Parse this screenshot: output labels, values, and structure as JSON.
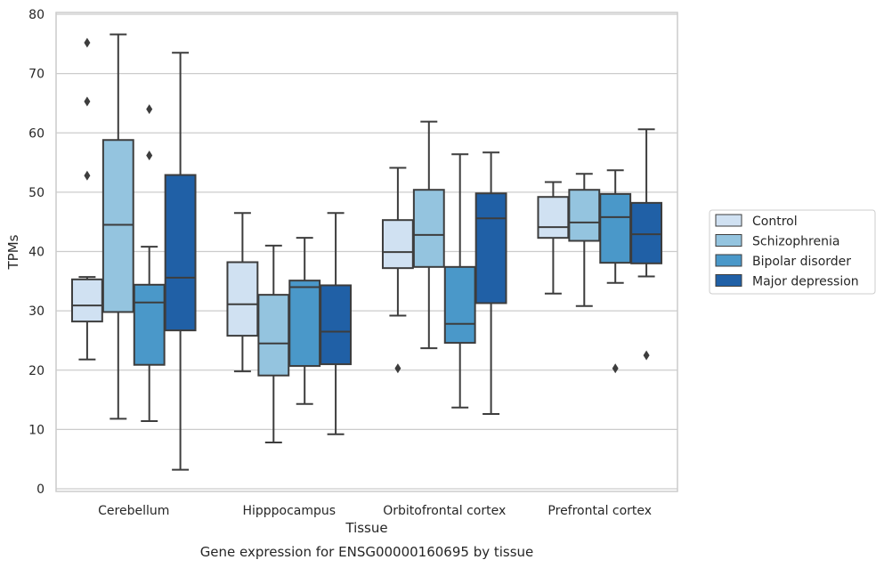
{
  "chart_data": {
    "type": "boxplot",
    "title": "Gene expression for ENSG00000160695 by tissue",
    "xlabel": "Tissue",
    "ylabel": "TPMs",
    "ylim": [
      0,
      80
    ],
    "yticks": [
      0,
      10,
      20,
      30,
      40,
      50,
      60,
      70,
      80
    ],
    "grid": true,
    "legend_position": "right",
    "categories": [
      "Cerebellum",
      "Hipppocampus",
      "Orbitofrontal cortex",
      "Prefrontal cortex"
    ],
    "series": [
      {
        "name": "Control",
        "color": "#d0e1f2",
        "boxes": [
          {
            "min": 21.8,
            "q1": 28.2,
            "median": 30.9,
            "q3": 35.3,
            "max": 35.7,
            "outliers": [
              52.8,
              65.3,
              75.2
            ]
          },
          {
            "min": 19.8,
            "q1": 25.8,
            "median": 31.1,
            "q3": 38.2,
            "max": 46.5,
            "outliers": []
          },
          {
            "min": 29.2,
            "q1": 37.2,
            "median": 39.9,
            "q3": 45.3,
            "max": 54.1,
            "outliers": [
              20.3
            ]
          },
          {
            "min": 32.9,
            "q1": 42.3,
            "median": 44.1,
            "q3": 49.2,
            "max": 51.7,
            "outliers": []
          }
        ]
      },
      {
        "name": "Schizophrenia",
        "color": "#94c4df",
        "boxes": [
          {
            "min": 11.8,
            "q1": 29.8,
            "median": 44.5,
            "q3": 58.8,
            "max": 76.6,
            "outliers": []
          },
          {
            "min": 7.8,
            "q1": 19.1,
            "median": 24.5,
            "q3": 32.7,
            "max": 41.0,
            "outliers": []
          },
          {
            "min": 23.7,
            "q1": 37.4,
            "median": 42.8,
            "q3": 50.4,
            "max": 61.9,
            "outliers": []
          },
          {
            "min": 30.8,
            "q1": 41.8,
            "median": 44.9,
            "q3": 50.4,
            "max": 53.1,
            "outliers": []
          }
        ]
      },
      {
        "name": "Bipolar disorder",
        "color": "#4a98c9",
        "boxes": [
          {
            "min": 11.4,
            "q1": 20.9,
            "median": 31.4,
            "q3": 34.4,
            "max": 40.8,
            "outliers": [
              56.2,
              64.0
            ]
          },
          {
            "min": 14.3,
            "q1": 20.7,
            "median": 34.0,
            "q3": 35.1,
            "max": 42.3,
            "outliers": []
          },
          {
            "min": 13.7,
            "q1": 24.6,
            "median": 27.8,
            "q3": 37.4,
            "max": 56.4,
            "outliers": []
          },
          {
            "min": 34.7,
            "q1": 38.1,
            "median": 45.8,
            "q3": 49.7,
            "max": 53.7,
            "outliers": [
              20.3
            ]
          }
        ]
      },
      {
        "name": "Major depression",
        "color": "#2060a6",
        "boxes": [
          {
            "min": 3.2,
            "q1": 26.7,
            "median": 35.6,
            "q3": 52.9,
            "max": 73.5,
            "outliers": []
          },
          {
            "min": 9.2,
            "q1": 21.0,
            "median": 26.5,
            "q3": 34.3,
            "max": 46.5,
            "outliers": []
          },
          {
            "min": 12.6,
            "q1": 31.3,
            "median": 45.6,
            "q3": 49.8,
            "max": 56.7,
            "outliers": []
          },
          {
            "min": 35.8,
            "q1": 38.0,
            "median": 42.9,
            "q3": 48.2,
            "max": 60.6,
            "outliers": [
              22.5
            ]
          }
        ]
      }
    ]
  }
}
